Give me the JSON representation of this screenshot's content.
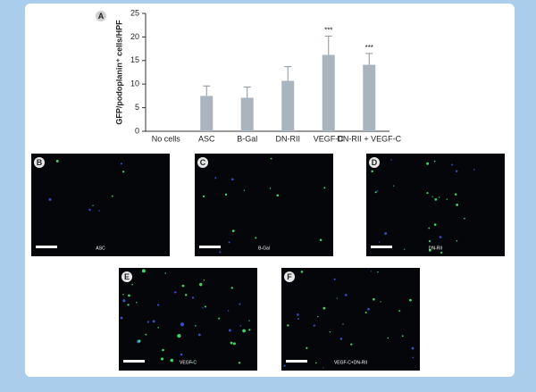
{
  "chart_data": {
    "type": "bar",
    "label": "A",
    "ylabel": "GFP/podoplanin⁺ cells/HPF",
    "categories": [
      "No cells",
      "ASC",
      "B-Gal",
      "DN-RII",
      "VEGF-C",
      "DN-RII + VEGF-C"
    ],
    "values": [
      0,
      7.5,
      7.1,
      10.7,
      16.2,
      14.1
    ],
    "errors": [
      null,
      2.1,
      2.3,
      3.0,
      4.0,
      2.4
    ],
    "color": "#aab4bf",
    "ylim": [
      0,
      25
    ],
    "yticks": [
      0,
      5,
      10,
      15,
      20,
      25
    ],
    "annotations": [
      {
        "label": "***",
        "category": "VEGF-C"
      },
      {
        "label": "***",
        "category": "DN-RII + VEGF-C"
      }
    ]
  },
  "panels": [
    {
      "label": "B",
      "caption": "ASC"
    },
    {
      "label": "C",
      "caption": "B-Gal"
    },
    {
      "label": "D",
      "caption": "DN-RII"
    },
    {
      "label": "E",
      "caption": "VEGF-C"
    },
    {
      "label": "F",
      "caption": "VEGF-C+DN-RII"
    }
  ]
}
